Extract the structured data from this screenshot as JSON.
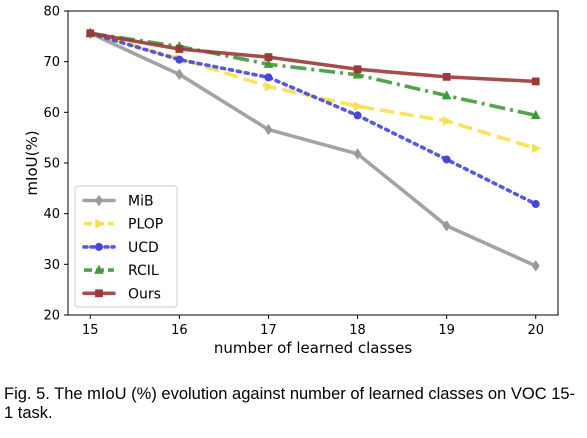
{
  "caption": "Fig. 5. The mIoU (%) evolution against number of learned classes on VOC 15-1 task.",
  "chart_data": {
    "type": "line",
    "xlabel": "number of learned classes",
    "ylabel": "mIoU(%)",
    "x": [
      15,
      16,
      17,
      18,
      19,
      20
    ],
    "xlim": [
      14.75,
      20.25
    ],
    "ylim": [
      20,
      80
    ],
    "yticks": [
      20,
      30,
      40,
      50,
      60,
      70,
      80
    ],
    "grid": false,
    "legend_position": "lower-left",
    "series": [
      {
        "name": "MiB",
        "color": "#999999",
        "dash": "solid",
        "marker": "diamond",
        "values": [
          75.6,
          67.5,
          56.6,
          51.8,
          37.6,
          29.7
        ]
      },
      {
        "name": "PLOP",
        "color": "#f5e04e",
        "dash": "dashed",
        "marker": "triangle-right",
        "values": [
          75.6,
          70.6,
          65.1,
          61.2,
          58.3,
          52.9
        ]
      },
      {
        "name": "UCD",
        "color": "#4646dc",
        "dash": "dotted",
        "marker": "circle",
        "values": [
          75.6,
          70.4,
          66.9,
          59.4,
          50.7,
          41.9
        ]
      },
      {
        "name": "RCIL",
        "color": "#3e9a3a",
        "dash": "dashdot",
        "marker": "triangle-up",
        "values": [
          75.6,
          73.0,
          69.5,
          67.4,
          63.3,
          59.4
        ]
      },
      {
        "name": "Ours",
        "color": "#9b3a3a",
        "dash": "solid",
        "marker": "square",
        "values": [
          75.6,
          72.5,
          70.9,
          68.5,
          67.0,
          66.1
        ]
      }
    ]
  }
}
